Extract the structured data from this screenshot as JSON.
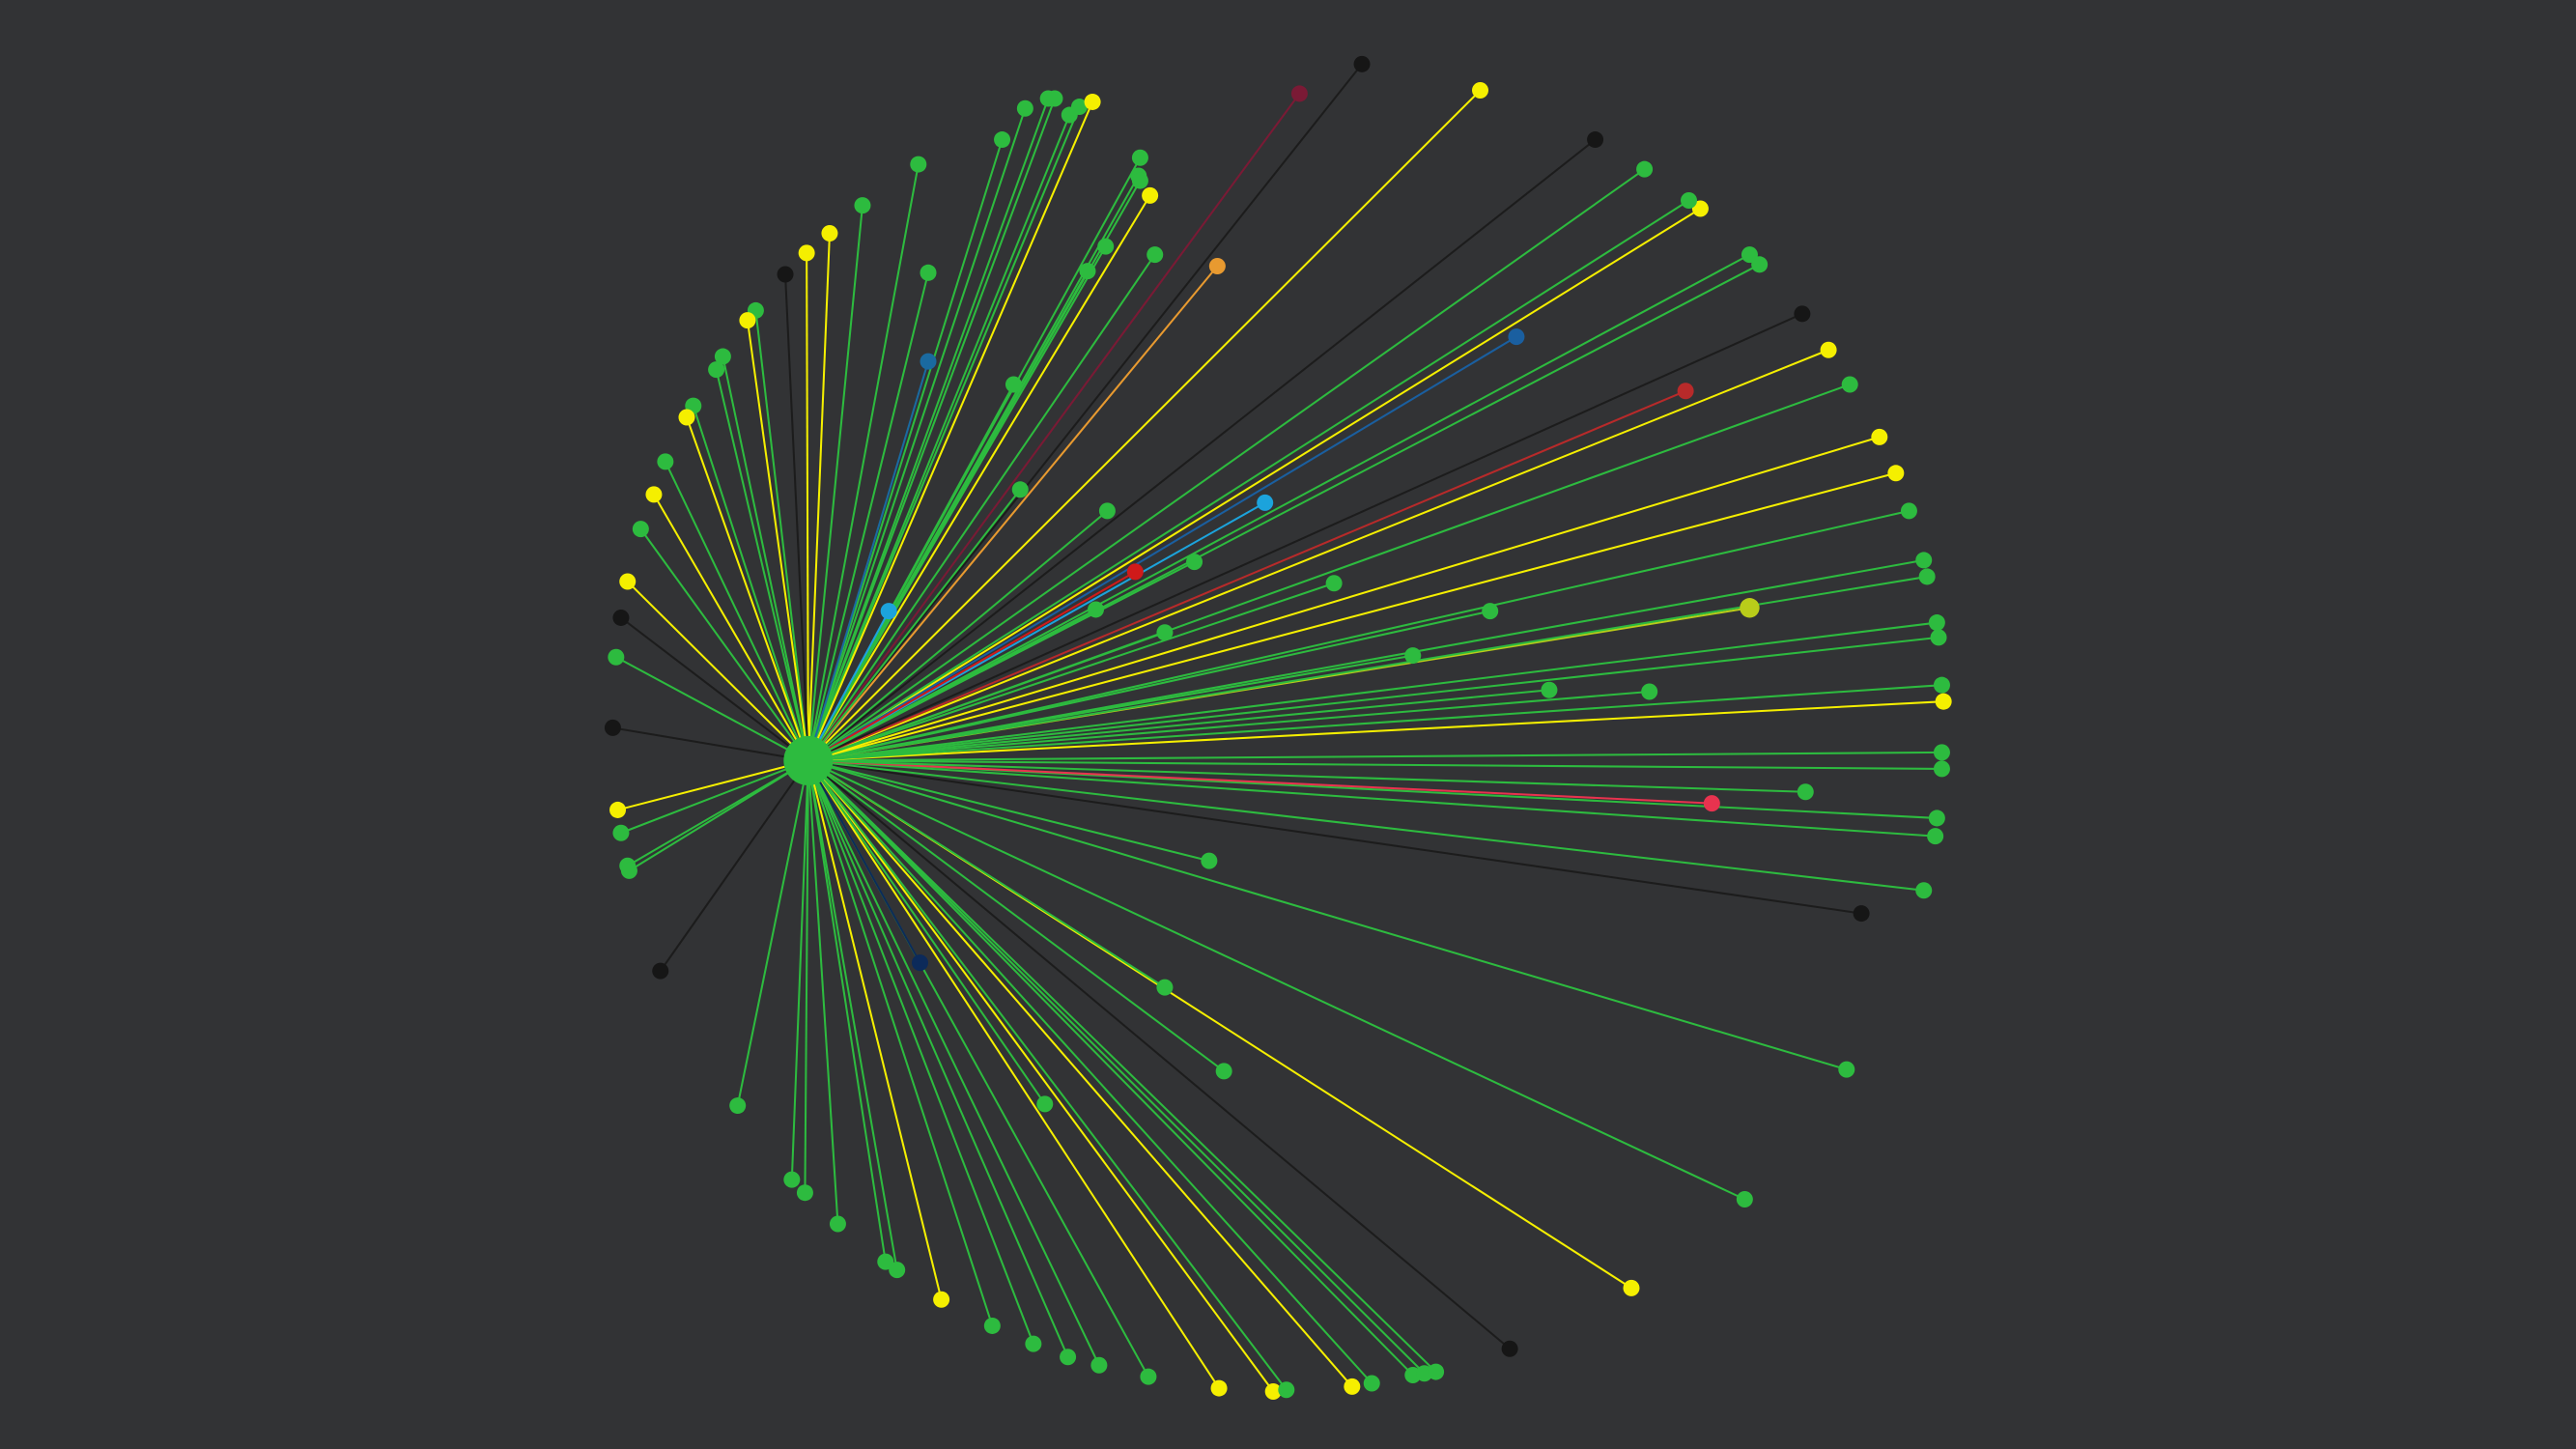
{
  "graph": {
    "background": "#323335",
    "hub_color": "#2dbb3f",
    "palette": {
      "green": "#2dbb3f",
      "yellow": "#f5ef00",
      "black": "#161616",
      "blue": "#1a6aa0",
      "darkblue": "#1a5fa0",
      "navy": "#0c2a5a",
      "cyan": "#1ca3dc",
      "red": "#d01a1a",
      "brickred": "#b82a2a",
      "pink": "#e8334f",
      "maroon": "#7a1a35",
      "orange": "#e89a30",
      "olive": "#b9cc1a"
    }
  }
}
